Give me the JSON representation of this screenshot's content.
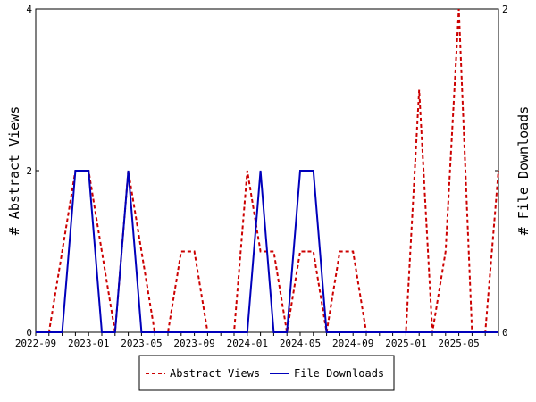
{
  "chart_data": {
    "type": "line",
    "x": [
      "2022-09",
      "2022-10",
      "2022-11",
      "2022-12",
      "2023-01",
      "2023-02",
      "2023-03",
      "2023-04",
      "2023-05",
      "2023-06",
      "2023-07",
      "2023-08",
      "2023-09",
      "2023-10",
      "2023-11",
      "2023-12",
      "2024-01",
      "2024-02",
      "2024-03",
      "2024-04",
      "2024-05",
      "2024-06",
      "2024-07",
      "2024-08",
      "2024-09",
      "2024-10",
      "2024-11",
      "2024-12",
      "2025-01",
      "2025-02",
      "2025-03",
      "2025-04",
      "2025-05",
      "2025-06",
      "2025-07",
      "2025-08"
    ],
    "x_tick_labels": [
      "2022-09",
      "2023-01",
      "2023-05",
      "2023-09",
      "2024-01",
      "2024-05",
      "2024-09",
      "2025-01",
      "2025-05"
    ],
    "series": [
      {
        "name": "Abstract Views",
        "axis": "left",
        "color": "#cc0000",
        "style": "dashed",
        "values": [
          0,
          0,
          1,
          2,
          2,
          1,
          0,
          2,
          1,
          0,
          0,
          1,
          1,
          0,
          0,
          0,
          2,
          1,
          1,
          0,
          1,
          1,
          0,
          1,
          1,
          0,
          0,
          0,
          0,
          3,
          0,
          1,
          4,
          0,
          0,
          2
        ]
      },
      {
        "name": "File Downloads",
        "axis": "right",
        "color": "#0000bb",
        "style": "solid",
        "values": [
          0,
          0,
          0,
          1,
          1,
          0,
          0,
          1,
          0,
          0,
          0,
          0,
          0,
          0,
          0,
          0,
          0,
          1,
          0,
          0,
          1,
          1,
          0,
          0,
          0,
          0,
          0,
          0,
          0,
          0,
          0,
          0,
          0,
          0,
          0,
          0
        ]
      }
    ],
    "ylabel_left": "# Abstract Views",
    "ylabel_right": "# File Downloads",
    "ylim_left": [
      0,
      4
    ],
    "ylim_right": [
      0,
      2
    ],
    "yticks_left": [
      "0",
      "2",
      "4"
    ],
    "yticks_right": [
      "0",
      "1",
      "2"
    ],
    "legend_position": "bottom",
    "grid": false
  }
}
